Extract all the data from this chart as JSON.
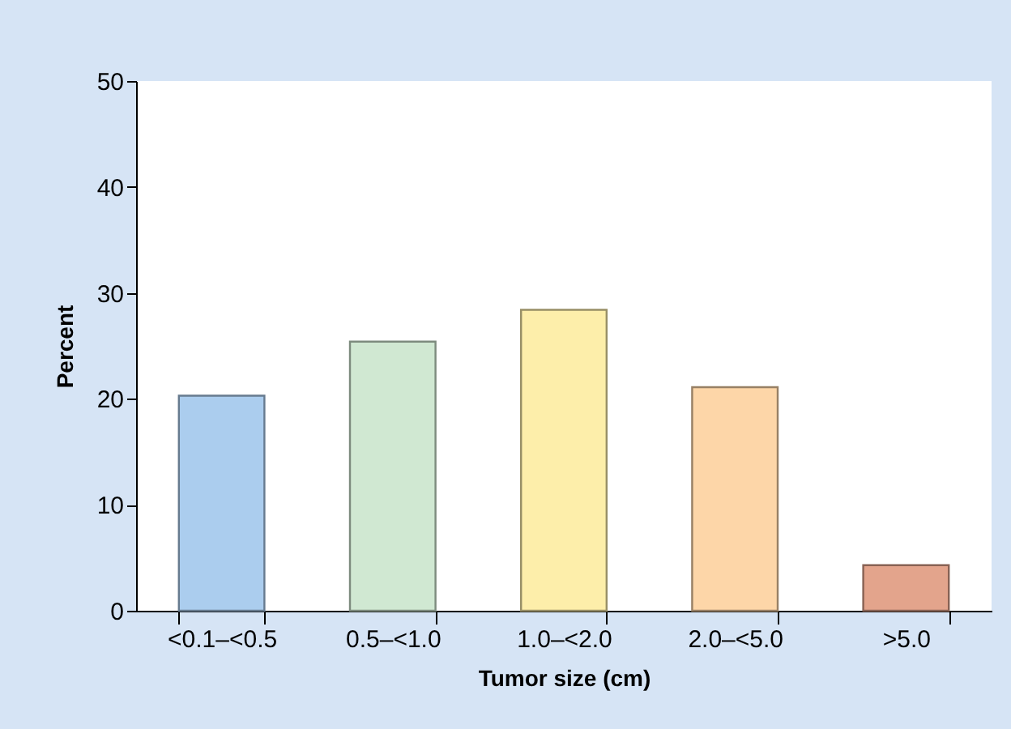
{
  "chart_data": {
    "type": "bar",
    "xlabel": "Tumor size (cm)",
    "ylabel": "Percent",
    "categories": [
      "<0.1–<0.5",
      "0.5–<1.0",
      "1.0–<2.0",
      "2.0–<5.0",
      ">5.0"
    ],
    "values": [
      20.3,
      25.4,
      28.4,
      21.1,
      4.3
    ],
    "colors": [
      "#abcdee",
      "#d0e8d2",
      "#fdeeaa",
      "#fdd6a8",
      "#e3a48c"
    ],
    "ylim": [
      0,
      50
    ],
    "yticks": [
      0,
      10,
      20,
      30,
      40,
      50
    ],
    "grid": false
  }
}
